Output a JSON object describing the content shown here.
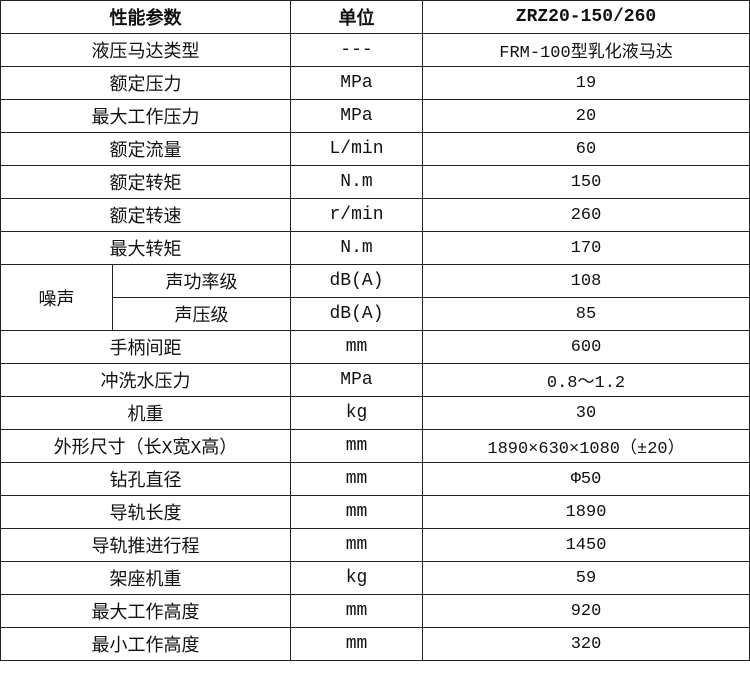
{
  "header": {
    "param": "性能参数",
    "unit": "单位",
    "model": "ZRZ20-150/260"
  },
  "rows_before": [
    {
      "param": "液压马达类型",
      "unit": "---",
      "value": "FRM-100型乳化液马达"
    },
    {
      "param": "额定压力",
      "unit": "MPa",
      "value": "19"
    },
    {
      "param": "最大工作压力",
      "unit": "MPa",
      "value": "20"
    },
    {
      "param": "额定流量",
      "unit": "L/min",
      "value": "60"
    },
    {
      "param": "额定转矩",
      "unit": "N.m",
      "value": "150"
    },
    {
      "param": "额定转速",
      "unit": "r/min",
      "value": "260"
    },
    {
      "param": "最大转矩",
      "unit": "N.m",
      "value": "170"
    }
  ],
  "noise": {
    "group": "噪声",
    "rows": [
      {
        "param": "声功率级",
        "unit": "dB(A)",
        "value": "108"
      },
      {
        "param": "声压级",
        "unit": "dB(A)",
        "value": "85"
      }
    ]
  },
  "rows_after": [
    {
      "param": "手柄间距",
      "unit": "mm",
      "value": "600"
    },
    {
      "param": "冲洗水压力",
      "unit": "MPa",
      "value": "0.8～1.2"
    },
    {
      "param": "机重",
      "unit": "kg",
      "value": "30"
    },
    {
      "param": "外形尺寸（长X宽X高）",
      "unit": "mm",
      "value": "1890×630×1080（±20）"
    },
    {
      "param": "钻孔直径",
      "unit": "mm",
      "value": "Φ50"
    },
    {
      "param": "导轨长度",
      "unit": "mm",
      "value": "1890"
    },
    {
      "param": "导轨推进行程",
      "unit": "mm",
      "value": "1450"
    },
    {
      "param": "架座机重",
      "unit": "kg",
      "value": "59"
    },
    {
      "param": "最大工作高度",
      "unit": "mm",
      "value": "920"
    },
    {
      "param": "最小工作高度",
      "unit": "mm",
      "value": "320"
    }
  ]
}
